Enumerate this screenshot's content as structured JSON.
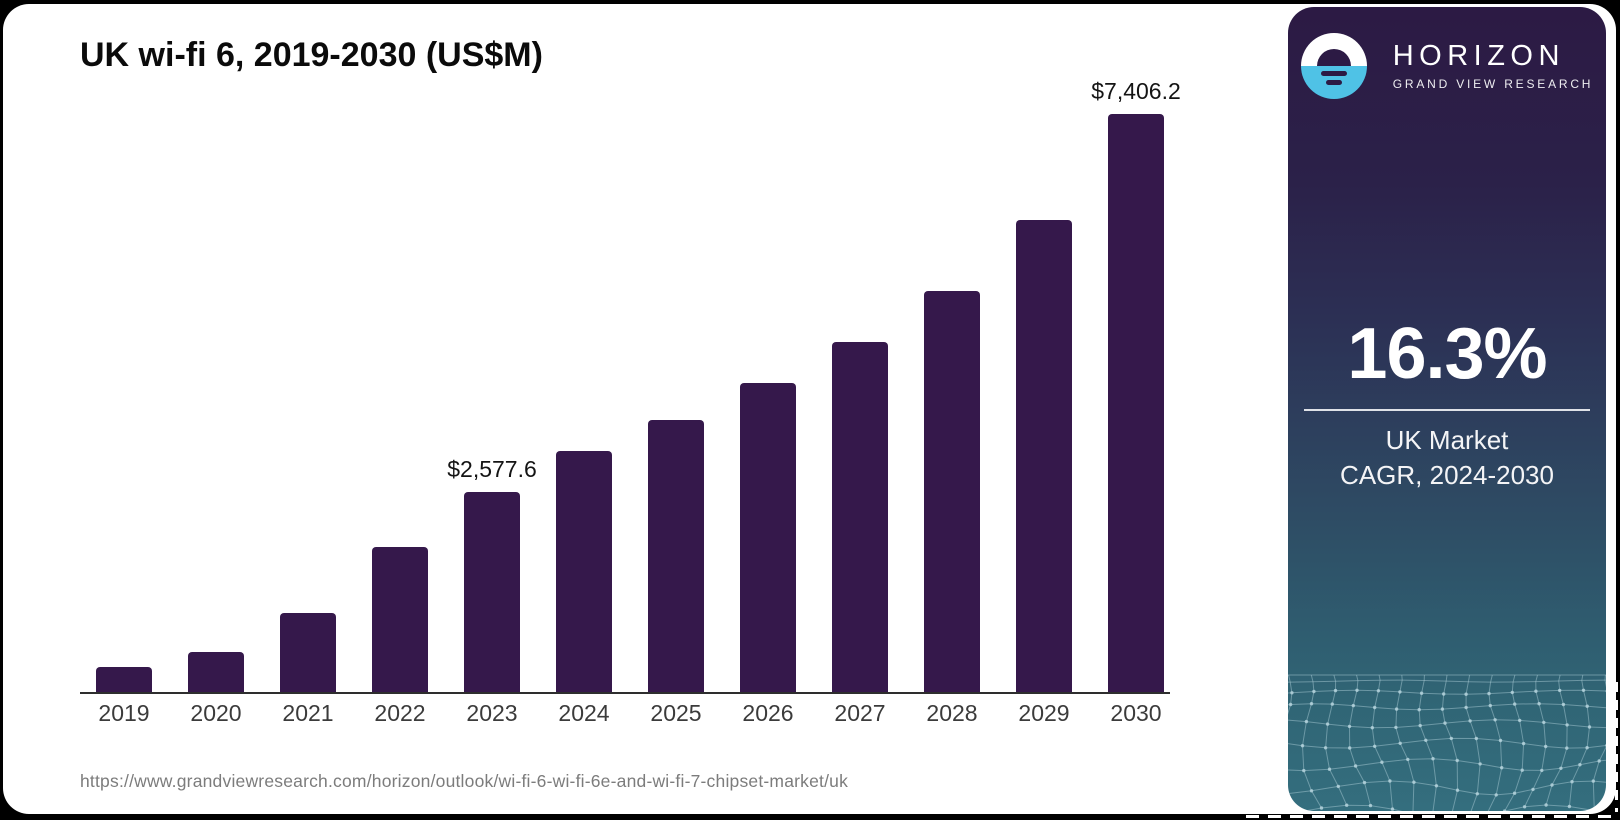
{
  "chart": {
    "title": "UK wi-fi 6, 2019-2030 (US$M)",
    "source_url": "https://www.grandviewresearch.com/horizon/outlook/wi-fi-6-wi-fi-6e-and-wi-fi-7-chipset-market/uk"
  },
  "chart_data": {
    "type": "bar",
    "title": "UK wi-fi 6, 2019-2030 (US$M)",
    "unit": "US$M",
    "categories": [
      "2019",
      "2020",
      "2021",
      "2022",
      "2023",
      "2024",
      "2025",
      "2026",
      "2027",
      "2028",
      "2029",
      "2030"
    ],
    "values": [
      345,
      535,
      1030,
      1875,
      2577.6,
      3100,
      3505,
      3965,
      4490,
      5150,
      6055,
      7406.2
    ],
    "data_labels": {
      "2023": "$2,577.6",
      "2030": "$7,406.2"
    },
    "xlabel": "",
    "ylabel": "",
    "ylim": [
      0,
      7600
    ],
    "grid": false,
    "legend": "none",
    "bar_color": "#35184b"
  },
  "sidebar": {
    "logo": {
      "brand": "HORIZON",
      "subbrand": "GRAND VIEW RESEARCH",
      "circle_top_color": "#ffffff",
      "circle_bottom_color": "#4fc2e6"
    },
    "stat": {
      "value": "16.3%",
      "line1": "UK Market",
      "line2": "CAGR, 2024-2030"
    },
    "gradient_top": "#2c1a44",
    "gradient_bottom": "#346e7e"
  },
  "colors": {
    "page_background": "#000000",
    "card_background": "#ffffff",
    "bar": "#35184b",
    "axis": "#2e2e2e",
    "tick_label": "#3b3b3b",
    "data_label": "#141414",
    "url_text": "#7c7c7c"
  }
}
